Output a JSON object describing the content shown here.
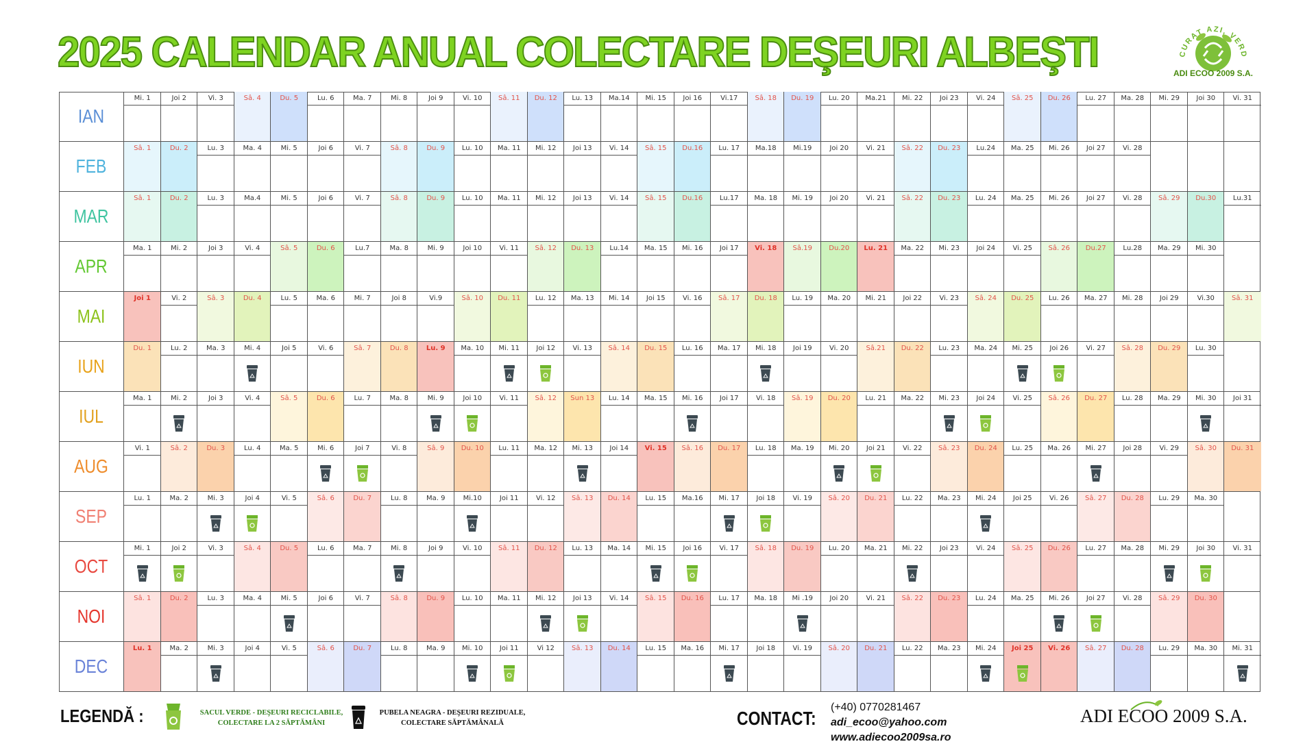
{
  "title": "2025 CALENDAR ANUAL COLECTARE DEŞEURI ALBEŞTI",
  "logo": {
    "arc_text": "CURAT AZI, VERDE MÂINE",
    "name": "ADI ECOO 2009 S.A."
  },
  "colors": {
    "title_green": "#7ed321",
    "grey_bin": "#3d4a52",
    "green_bin": "#8dc63f"
  },
  "months": [
    {
      "name": "IAN",
      "color": "#5b8fd6",
      "sat": "#eaf2fd",
      "sun": "#cfe0fb",
      "hol": "#f8c2bc",
      "labels": [
        "Mi. 1",
        "Joi 2",
        "Vi. 3",
        "Sâ. 4",
        "Du. 5",
        "Lu. 6",
        "Ma. 7",
        "Mi. 8",
        "Joi 9",
        "Vi. 10",
        "Sâ. 11",
        "Du. 12",
        "Lu. 13",
        "Ma.14",
        "Mi. 15",
        "Joi 16",
        "Vi.17",
        "Sâ. 18",
        "Du. 19",
        "Lu. 20",
        "Ma.21",
        "Mi. 22",
        "Joi 23",
        "Vi. 24",
        "Sâ. 25",
        "Du. 26",
        "Lu. 27",
        "Ma. 28",
        "Mi. 29",
        "Joi 30",
        "Vi. 31"
      ],
      "types": [
        "w",
        "w",
        "w",
        "sat",
        "sun",
        "w",
        "w",
        "w",
        "w",
        "w",
        "sat",
        "sun",
        "w",
        "w",
        "w",
        "w",
        "w",
        "sat",
        "sun",
        "w",
        "w",
        "w",
        "w",
        "w",
        "sat",
        "sun",
        "w",
        "w",
        "w",
        "w",
        "w"
      ],
      "bins": []
    },
    {
      "name": "FEB",
      "color": "#4fb3dd",
      "sat": "#e6f6fc",
      "sun": "#cbeefa",
      "hol": "#f8c2bc",
      "labels": [
        "Sâ. 1",
        "Du. 2",
        "Lu. 3",
        "Ma. 4",
        "Mi. 5",
        "Joi 6",
        "Vi. 7",
        "Sâ. 8",
        "Du. 9",
        "Lu. 10",
        "Ma. 11",
        "Mi. 12",
        "Joi 13",
        "Vi. 14",
        "Sâ. 15",
        "Du.16",
        "Lu. 17",
        "Ma.18",
        "Mi.19",
        "Joi 20",
        "Vi. 21",
        "Sâ. 22",
        "Du. 23",
        "Lu.24",
        "Ma. 25",
        "Mi. 26",
        "Joi 27",
        "Vi. 28"
      ],
      "types": [
        "sat",
        "sun",
        "w",
        "w",
        "w",
        "w",
        "w",
        "sat",
        "sun",
        "w",
        "w",
        "w",
        "w",
        "w",
        "sat",
        "sun",
        "w",
        "w",
        "w",
        "w",
        "w",
        "sat",
        "sun",
        "w",
        "w",
        "w",
        "w",
        "w"
      ],
      "bins": []
    },
    {
      "name": "MAR",
      "color": "#3fc4a0",
      "sat": "#e6f8f1",
      "sun": "#c8f1e2",
      "hol": "#f8c2bc",
      "labels": [
        "Sâ. 1",
        "Du. 2",
        "Lu. 3",
        "Ma.4",
        "Mi. 5",
        "Joi 6",
        "Vi. 7",
        "Sâ. 8",
        "Du. 9",
        "Lu. 10",
        "Ma. 11",
        "Mi. 12",
        "Joi 13",
        "Vi. 14",
        "Sâ. 15",
        "Du.16",
        "Lu.17",
        "Ma. 18",
        "Mi. 19",
        "Joi 20",
        "Vi. 21",
        "Sâ. 22",
        "Du. 23",
        "Lu. 24",
        "Ma. 25",
        "Mi. 26",
        "Joi 27",
        "Vi. 28",
        "Sâ. 29",
        "Du.30",
        "Lu.31"
      ],
      "types": [
        "sat",
        "sun",
        "w",
        "w",
        "w",
        "w",
        "w",
        "sat",
        "sun",
        "w",
        "w",
        "w",
        "w",
        "w",
        "sat",
        "sun",
        "w",
        "w",
        "w",
        "w",
        "w",
        "sat",
        "sun",
        "w",
        "w",
        "w",
        "w",
        "w",
        "sat",
        "sun",
        "w"
      ],
      "bins": []
    },
    {
      "name": "APR",
      "color": "#62c832",
      "sat": "#e8f8df",
      "sun": "#cdf3bd",
      "hol": "#f8c2bc",
      "labels": [
        "Ma. 1",
        "Mi. 2",
        "Joi 3",
        "Vi. 4",
        "Sâ. 5",
        "Du. 6",
        "Lu.7",
        "Ma. 8",
        "Mi. 9",
        "Joi 10",
        "Vi. 11",
        "Sâ. 12",
        "Du. 13",
        "Lu.14",
        "Ma. 15",
        "Mi. 16",
        "Joi 17",
        "Vi. 18",
        "Sâ.19",
        "Du.20",
        "Lu. 21",
        "Ma. 22",
        "Mi. 23",
        "Joi 24",
        "Vi. 25",
        "Sâ. 26",
        "Du.27",
        "Lu.28",
        "Ma. 29",
        "Mi. 30"
      ],
      "types": [
        "w",
        "w",
        "w",
        "w",
        "sat",
        "sun",
        "w",
        "w",
        "w",
        "w",
        "w",
        "sat",
        "sun",
        "w",
        "w",
        "w",
        "w",
        "hol",
        "sat",
        "sun",
        "hol",
        "w",
        "w",
        "w",
        "w",
        "sat",
        "sun",
        "w",
        "w",
        "w"
      ],
      "bins": []
    },
    {
      "name": "MAI",
      "color": "#8cc21a",
      "sat": "#f1f9df",
      "sun": "#e2f3bb",
      "hol": "#f8c2bc",
      "labels": [
        "Joi 1",
        "Vi. 2",
        "Sâ. 3",
        "Du. 4",
        "Lu. 5",
        "Ma. 6",
        "Mi. 7",
        "Joi 8",
        "Vi.9",
        "Sâ. 10",
        "Du. 11",
        "Lu. 12",
        "Ma. 13",
        "Mi. 14",
        "Joi 15",
        "Vi. 16",
        "Sâ. 17",
        "Du. 18",
        "Lu. 19",
        "Ma. 20",
        "Mi. 21",
        "Joi 22",
        "Vi. 23",
        "Sâ. 24",
        "Du. 25",
        "Lu. 26",
        "Ma. 27",
        "Mi. 28",
        "Joi 29",
        "Vi.30",
        "Sâ. 31"
      ],
      "types": [
        "hol",
        "w",
        "sat",
        "sun",
        "w",
        "w",
        "w",
        "w",
        "w",
        "sat",
        "sun",
        "w",
        "w",
        "w",
        "w",
        "w",
        "sat",
        "sun",
        "w",
        "w",
        "w",
        "w",
        "w",
        "sat",
        "sun",
        "w",
        "w",
        "w",
        "w",
        "w",
        "sat"
      ],
      "bins": []
    },
    {
      "name": "IUN",
      "color": "#e8a31c",
      "sat": "#fdf1dc",
      "sun": "#fbe2b8",
      "hol": "#f8c2bc",
      "labels": [
        "Du. 1",
        "Lu. 2",
        "Ma. 3",
        "Mi. 4",
        "Joi 5",
        "Vi. 6",
        "Sâ. 7",
        "Du. 8",
        "Lu. 9",
        "Ma. 10",
        "Mi. 11",
        "Joi 12",
        "Vi. 13",
        "Sâ. 14",
        "Du. 15",
        "Lu. 16",
        "Ma. 17",
        "Mi. 18",
        "Joi 19",
        "Vi. 20",
        "Sâ.21",
        "Du. 22",
        "Lu. 23",
        "Ma. 24",
        "Mi. 25",
        "Joi 26",
        "Vi. 27",
        "Sâ. 28",
        "Du. 29",
        "Lu. 30"
      ],
      "types": [
        "sun",
        "w",
        "w",
        "w",
        "w",
        "w",
        "sat",
        "sun",
        "hol",
        "w",
        "w",
        "w",
        "w",
        "sat",
        "sun",
        "w",
        "w",
        "w",
        "w",
        "w",
        "sat",
        "sun",
        "w",
        "w",
        "w",
        "w",
        "w",
        "sat",
        "sun",
        "w"
      ],
      "bins": [
        [
          3,
          "grey"
        ],
        [
          10,
          "grey"
        ],
        [
          11,
          "green"
        ],
        [
          17,
          "grey"
        ],
        [
          24,
          "grey"
        ],
        [
          25,
          "green"
        ]
      ]
    },
    {
      "name": "IUL",
      "color": "#e2a11f",
      "sat": "#fef5dc",
      "sun": "#fde5ad",
      "hol": "#f8c2bc",
      "labels": [
        "Ma. 1",
        "Mi. 2",
        "Joi 3",
        "Vi. 4",
        "Sâ. 5",
        "Du. 6",
        "Lu. 7",
        "Ma. 8",
        "Mi. 9",
        "Joi 10",
        "Vi. 11",
        "Sâ. 12",
        "Sun 13",
        "Lu. 14",
        "Ma. 15",
        "Mi. 16",
        "Joi 17",
        "Vi. 18",
        "Sâ. 19",
        "Du. 20",
        "Lu. 21",
        "Ma. 22",
        "Mi. 23",
        "Joi 24",
        "Vi. 25",
        "Sâ. 26",
        "Du. 27",
        "Lu. 28",
        "Ma. 29",
        "Mi. 30",
        "Joi 31"
      ],
      "types": [
        "w",
        "w",
        "w",
        "w",
        "sat",
        "sun",
        "w",
        "w",
        "w",
        "w",
        "w",
        "sat",
        "sun",
        "w",
        "w",
        "w",
        "w",
        "w",
        "sat",
        "sun",
        "w",
        "w",
        "w",
        "w",
        "w",
        "sat",
        "sun",
        "w",
        "w",
        "w",
        "w"
      ],
      "bins": [
        [
          1,
          "grey"
        ],
        [
          8,
          "grey"
        ],
        [
          9,
          "green"
        ],
        [
          15,
          "grey"
        ],
        [
          22,
          "grey"
        ],
        [
          23,
          "green"
        ],
        [
          29,
          "grey"
        ]
      ]
    },
    {
      "name": "AUG",
      "color": "#ee8c2b",
      "sat": "#fdebdb",
      "sun": "#fbd2ac",
      "hol": "#f8c2bc",
      "labels": [
        "Vi. 1",
        "Sâ. 2",
        "Du. 3",
        "Lu. 4",
        "Ma. 5",
        "Mi. 6",
        "Joi 7",
        "Vi. 8",
        "Sâ. 9",
        "Du. 10",
        "Lu. 11",
        "Ma. 12",
        "Mi. 13",
        "Joi 14",
        "Vi. 15",
        "Sâ. 16",
        "Du. 17",
        "Lu. 18",
        "Ma. 19",
        "Mi. 20",
        "Joi 21",
        "Vi. 22",
        "Sâ. 23",
        "Du. 24",
        "Lu. 25",
        "Ma. 26",
        "Mi. 27",
        "Joi 28",
        "Vi. 29",
        "Sâ. 30",
        "Du. 31"
      ],
      "types": [
        "w",
        "sat",
        "sun",
        "w",
        "w",
        "w",
        "w",
        "w",
        "sat",
        "sun",
        "w",
        "w",
        "w",
        "w",
        "hol",
        "sat",
        "sun",
        "w",
        "w",
        "w",
        "w",
        "w",
        "sat",
        "sun",
        "w",
        "w",
        "w",
        "w",
        "w",
        "sat",
        "sun"
      ],
      "bins": [
        [
          5,
          "grey"
        ],
        [
          6,
          "green"
        ],
        [
          12,
          "grey"
        ],
        [
          19,
          "grey"
        ],
        [
          20,
          "green"
        ],
        [
          26,
          "grey"
        ]
      ]
    },
    {
      "name": "SEP",
      "color": "#f07f72",
      "sat": "#fde9e6",
      "sun": "#fbd4cf",
      "hol": "#f8c2bc",
      "labels": [
        "Lu. 1",
        "Ma. 2",
        "Mi. 3",
        "Joi 4",
        "Vi. 5",
        "Sâ. 6",
        "Du. 7",
        "Lu. 8",
        "Ma. 9",
        "Mi.10",
        "Joi 11",
        "Vi. 12",
        "Sâ. 13",
        "Du. 14",
        "Lu. 15",
        "Ma.16",
        "Mi. 17",
        "Joi 18",
        "Vi. 19",
        "Sâ. 20",
        "Du. 21",
        "Lu. 22",
        "Ma. 23",
        "Mi. 24",
        "Joi 25",
        "Vi. 26",
        "Sâ. 27",
        "Du. 28",
        "Lu. 29",
        "Ma. 30"
      ],
      "types": [
        "w",
        "w",
        "w",
        "w",
        "w",
        "sat",
        "sun",
        "w",
        "w",
        "w",
        "w",
        "w",
        "sat",
        "sun",
        "w",
        "w",
        "w",
        "w",
        "w",
        "sat",
        "sun",
        "w",
        "w",
        "w",
        "w",
        "w",
        "sat",
        "sun",
        "w",
        "w"
      ],
      "bins": [
        [
          2,
          "grey"
        ],
        [
          3,
          "green"
        ],
        [
          9,
          "grey"
        ],
        [
          16,
          "grey"
        ],
        [
          17,
          "green"
        ],
        [
          23,
          "grey"
        ]
      ]
    },
    {
      "name": "OCT",
      "color": "#e8483f",
      "sat": "#fde6e3",
      "sun": "#f9c9c3",
      "hol": "#f8c2bc",
      "labels": [
        "Mi. 1",
        "Joi 2",
        "Vi. 3",
        "Sâ. 4",
        "Du. 5",
        "Lu. 6",
        "Ma. 7",
        "Mi. 8",
        "Joi 9",
        "Vi. 10",
        "Sâ. 11",
        "Du. 12",
        "Lu. 13",
        "Ma. 14",
        "Mi. 15",
        "Joi 16",
        "Vi. 17",
        "Sâ. 18",
        "Du. 19",
        "Lu. 20",
        "Ma. 21",
        "Mi. 22",
        "Joi 23",
        "Vi. 24",
        "Sâ. 25",
        "Du. 26",
        "Lu. 27",
        "Ma. 28",
        "Mi. 29",
        "Joi 30",
        "Vi. 31"
      ],
      "types": [
        "w",
        "w",
        "w",
        "sat",
        "sun",
        "w",
        "w",
        "w",
        "w",
        "w",
        "sat",
        "sun",
        "w",
        "w",
        "w",
        "w",
        "w",
        "sat",
        "sun",
        "w",
        "w",
        "w",
        "w",
        "w",
        "sat",
        "sun",
        "w",
        "w",
        "w",
        "w",
        "w"
      ],
      "bins": [
        [
          0,
          "grey"
        ],
        [
          1,
          "green"
        ],
        [
          7,
          "grey"
        ],
        [
          14,
          "grey"
        ],
        [
          15,
          "green"
        ],
        [
          21,
          "grey"
        ],
        [
          28,
          "grey"
        ],
        [
          29,
          "green"
        ]
      ]
    },
    {
      "name": "NOI",
      "color": "#e5352c",
      "sat": "#fde3e0",
      "sun": "#f9c0ba",
      "hol": "#f8c2bc",
      "labels": [
        "Sâ. 1",
        "Du. 2",
        "Lu. 3",
        "Ma. 4",
        "Mi. 5",
        "Joi 6",
        "Vi. 7",
        "Sâ. 8",
        "Du. 9",
        "Lu. 10",
        "Ma. 11",
        "Mi. 12",
        "Joi 13",
        "Vi. 14",
        "Sâ. 15",
        "Du. 16",
        "Lu. 17",
        "Ma. 18",
        "Mi .19",
        "Joi 20",
        "Vi. 21",
        "Sâ. 22",
        "Du. 23",
        "Lu. 24",
        "Ma. 25",
        "Mi. 26",
        "Joi 27",
        "Vi. 28",
        "Sâ. 29",
        "Du. 30"
      ],
      "types": [
        "sat",
        "sun",
        "w",
        "w",
        "w",
        "w",
        "w",
        "sat",
        "sun",
        "w",
        "w",
        "w",
        "w",
        "w",
        "sat",
        "sun",
        "w",
        "w",
        "w",
        "w",
        "w",
        "sat",
        "sun",
        "w",
        "w",
        "w",
        "w",
        "w",
        "sat",
        "sun"
      ],
      "bins": [
        [
          4,
          "grey"
        ],
        [
          11,
          "grey"
        ],
        [
          12,
          "green"
        ],
        [
          18,
          "grey"
        ],
        [
          25,
          "grey"
        ],
        [
          26,
          "green"
        ]
      ]
    },
    {
      "name": "DEC",
      "color": "#6a83d8",
      "sat": "#eaeefc",
      "sun": "#cfd8f8",
      "hol": "#f8c2bc",
      "labels": [
        "Lu. 1",
        "Ma. 2",
        "Mi. 3",
        "Joi 4",
        "Vi. 5",
        "Sâ. 6",
        "Du. 7",
        "Lu. 8",
        "Ma. 9",
        "Mi. 10",
        "Joi 11",
        "Vi 12",
        "Sâ. 13",
        "Du. 14",
        "Lu. 15",
        "Ma. 16",
        "Mi. 17",
        "Joi 18",
        "Vi. 19",
        "Sâ. 20",
        "Du. 21",
        "Lu. 22",
        "Ma. 23",
        "Mi. 24",
        "Joi 25",
        "Vi. 26",
        "Sâ. 27",
        "Du. 28",
        "Lu. 29",
        "Ma. 30",
        "Mi. 31"
      ],
      "types": [
        "hol",
        "w",
        "w",
        "w",
        "w",
        "sat",
        "sun",
        "w",
        "w",
        "w",
        "w",
        "w",
        "sat",
        "sun",
        "w",
        "w",
        "w",
        "w",
        "w",
        "sat",
        "sun",
        "w",
        "w",
        "w",
        "hol",
        "hol",
        "sat",
        "sun",
        "w",
        "w",
        "w"
      ],
      "bins": [
        [
          2,
          "grey"
        ],
        [
          9,
          "grey"
        ],
        [
          10,
          "green"
        ],
        [
          16,
          "grey"
        ],
        [
          23,
          "grey"
        ],
        [
          24,
          "green"
        ],
        [
          30,
          "grey"
        ]
      ]
    }
  ],
  "legend": {
    "label": "LEGENDĂ :",
    "green_line1": "SACUL VERDE - DEŞEURI RECICLABILE,",
    "green_line2": "COLECTARE LA 2 SĂPTĂMÂNI",
    "grey_line1": "PUBELA NEAGRA - DEŞEURI REZIDUALE,",
    "grey_line2": "COLECTARE SĂPTĂMÂNALĂ"
  },
  "contact": {
    "label": "CONTACT:",
    "phone": "(+40) 0770281467",
    "email": "adi_ecoo@yahoo.com",
    "web": "www.adiecoo2009sa.ro"
  },
  "brand_bottom": "ADI ECOO 2009 S.A."
}
